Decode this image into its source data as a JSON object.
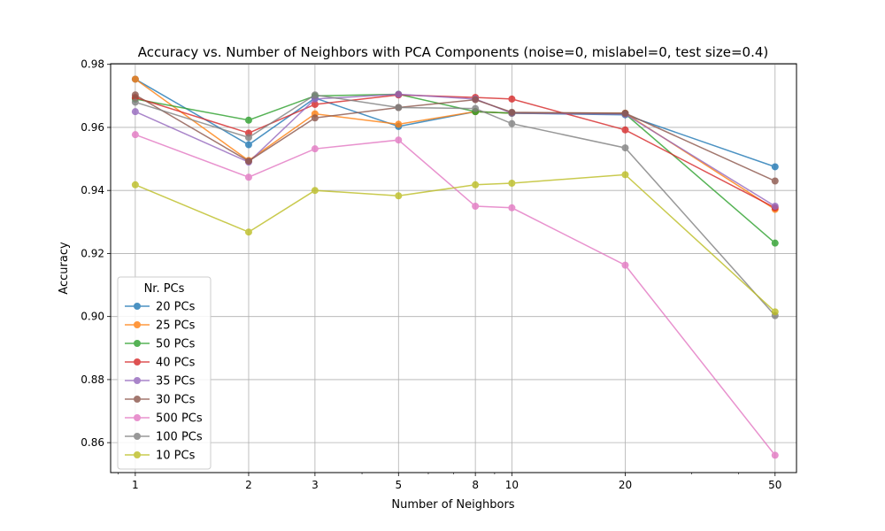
{
  "chart_data": {
    "type": "line",
    "title": "Accuracy vs. Number of Neighbors with PCA Components (noise=0, mislabel=0, test size=0.4)",
    "xlabel": "Number of Neighbors",
    "ylabel": "Accuracy",
    "x_scale": "log",
    "x": [
      1,
      2,
      3,
      5,
      8,
      10,
      20,
      50
    ],
    "x_tick_labels": [
      "1",
      "2",
      "3",
      "5",
      "8",
      "10",
      "20",
      "50"
    ],
    "xlim": [
      0.86,
      57
    ],
    "ylim": [
      0.8505,
      0.9802
    ],
    "y_ticks": [
      0.86,
      0.88,
      0.9,
      0.92,
      0.94,
      0.96,
      0.98
    ],
    "y_tick_labels": [
      "0.86",
      "0.88",
      "0.90",
      "0.92",
      "0.94",
      "0.96",
      "0.98"
    ],
    "grid": true,
    "legend": {
      "title": "Nr. PCs",
      "placement": "lower-left"
    },
    "series": [
      {
        "name": "20 PCs",
        "color": "#1f77b4",
        "values": [
          0.9753,
          0.9545,
          0.9693,
          0.9603,
          0.965,
          0.9645,
          0.964,
          0.9475
        ]
      },
      {
        "name": "25 PCs",
        "color": "#ff7f0e",
        "values": [
          0.9753,
          0.9495,
          0.9643,
          0.961,
          0.965,
          0.9645,
          0.9645,
          0.934
        ]
      },
      {
        "name": "50 PCs",
        "color": "#2ca02c",
        "values": [
          0.969,
          0.9623,
          0.97,
          0.9705,
          0.965,
          0.9645,
          0.9643,
          0.9233
        ]
      },
      {
        "name": "40 PCs",
        "color": "#d62728",
        "values": [
          0.9695,
          0.9582,
          0.9673,
          0.9703,
          0.9695,
          0.969,
          0.9592,
          0.9345
        ]
      },
      {
        "name": "35 PCs",
        "color": "#9467bd",
        "values": [
          0.965,
          0.949,
          0.969,
          0.9705,
          0.969,
          0.9645,
          0.9642,
          0.935
        ]
      },
      {
        "name": "30 PCs",
        "color": "#8c564b",
        "values": [
          0.9703,
          0.9493,
          0.963,
          0.9663,
          0.9688,
          0.9648,
          0.9645,
          0.943
        ]
      },
      {
        "name": "500 PCs",
        "color": "#e377c2",
        "values": [
          0.9577,
          0.9442,
          0.9532,
          0.956,
          0.935,
          0.9345,
          0.9163,
          0.856
        ]
      },
      {
        "name": "100 PCs",
        "color": "#7f7f7f",
        "values": [
          0.968,
          0.9568,
          0.9703,
          0.9663,
          0.966,
          0.9612,
          0.9535,
          0.9003
        ]
      },
      {
        "name": "10 PCs",
        "color": "#bcbd22",
        "values": [
          0.9418,
          0.9268,
          0.94,
          0.9383,
          0.9418,
          0.9423,
          0.945,
          0.9015
        ]
      }
    ]
  }
}
